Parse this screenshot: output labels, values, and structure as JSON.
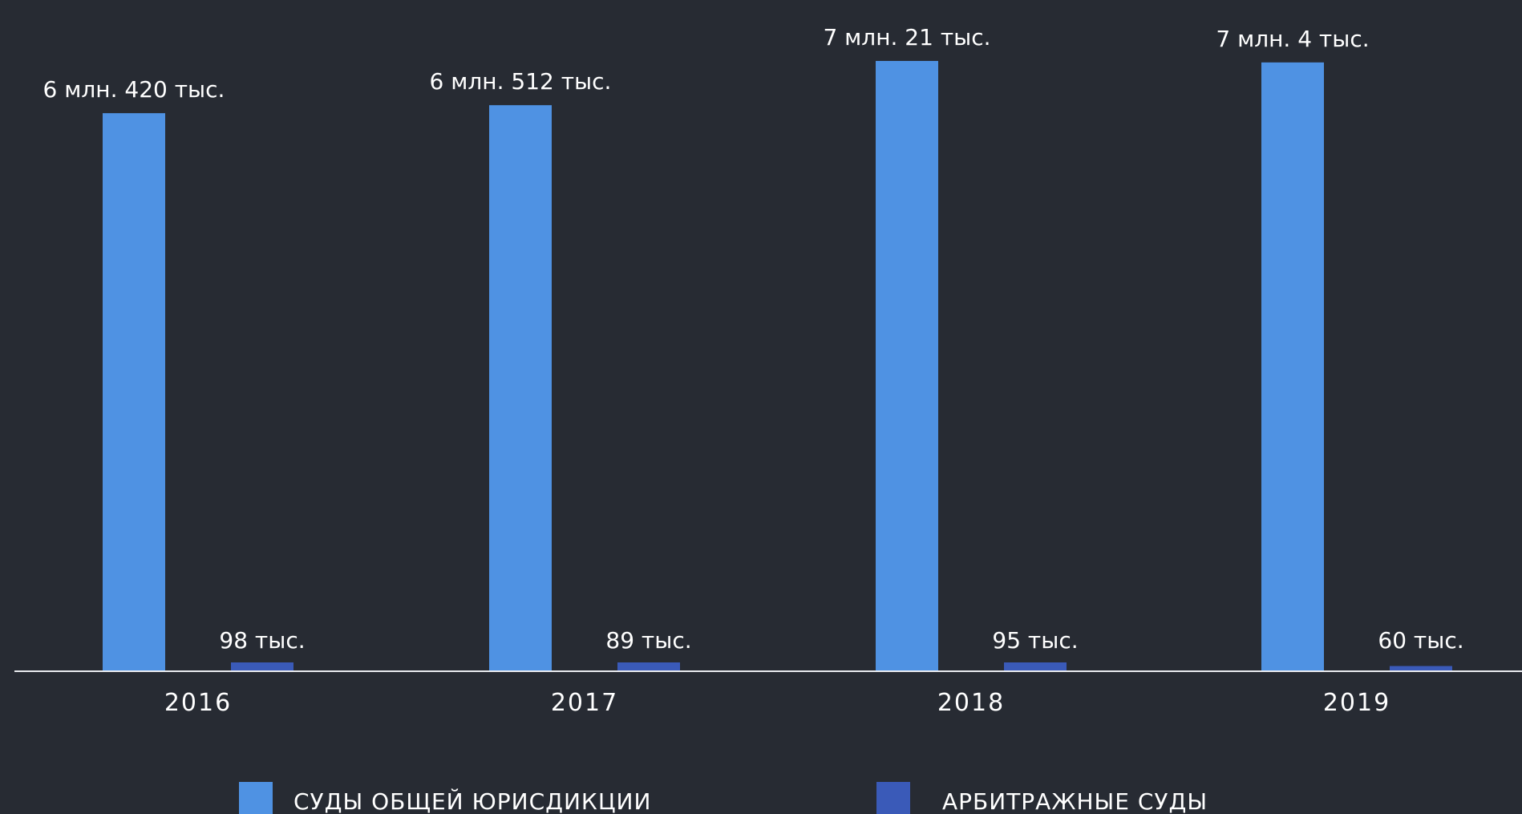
{
  "chart_data": {
    "type": "bar",
    "title": "",
    "xlabel": "",
    "ylabel": "",
    "categories": [
      "2016",
      "2017",
      "2018",
      "2019"
    ],
    "ylim": [
      0,
      7150000
    ],
    "grid": false,
    "legend_position": "bottom",
    "series": [
      {
        "name": "СУДЫ ОБЩЕЙ ЮРИСДИКЦИИ",
        "color": "#4f92e3",
        "values": [
          6420000,
          6512000,
          7021000,
          7004000
        ],
        "labels": [
          "6 млн. 420 тыс.",
          "6 млн. 512 тыс.",
          "7 млн. 21 тыс.",
          "7 млн. 4 тыс."
        ]
      },
      {
        "name": "АРБИТРАЖНЫЕ СУДЫ",
        "color": "#3a5ab8",
        "values": [
          98000,
          89000,
          95000,
          60000
        ],
        "labels": [
          "98 тыс.",
          "89 тыс.",
          "95 тыс.",
          "60 тыс."
        ]
      }
    ]
  }
}
